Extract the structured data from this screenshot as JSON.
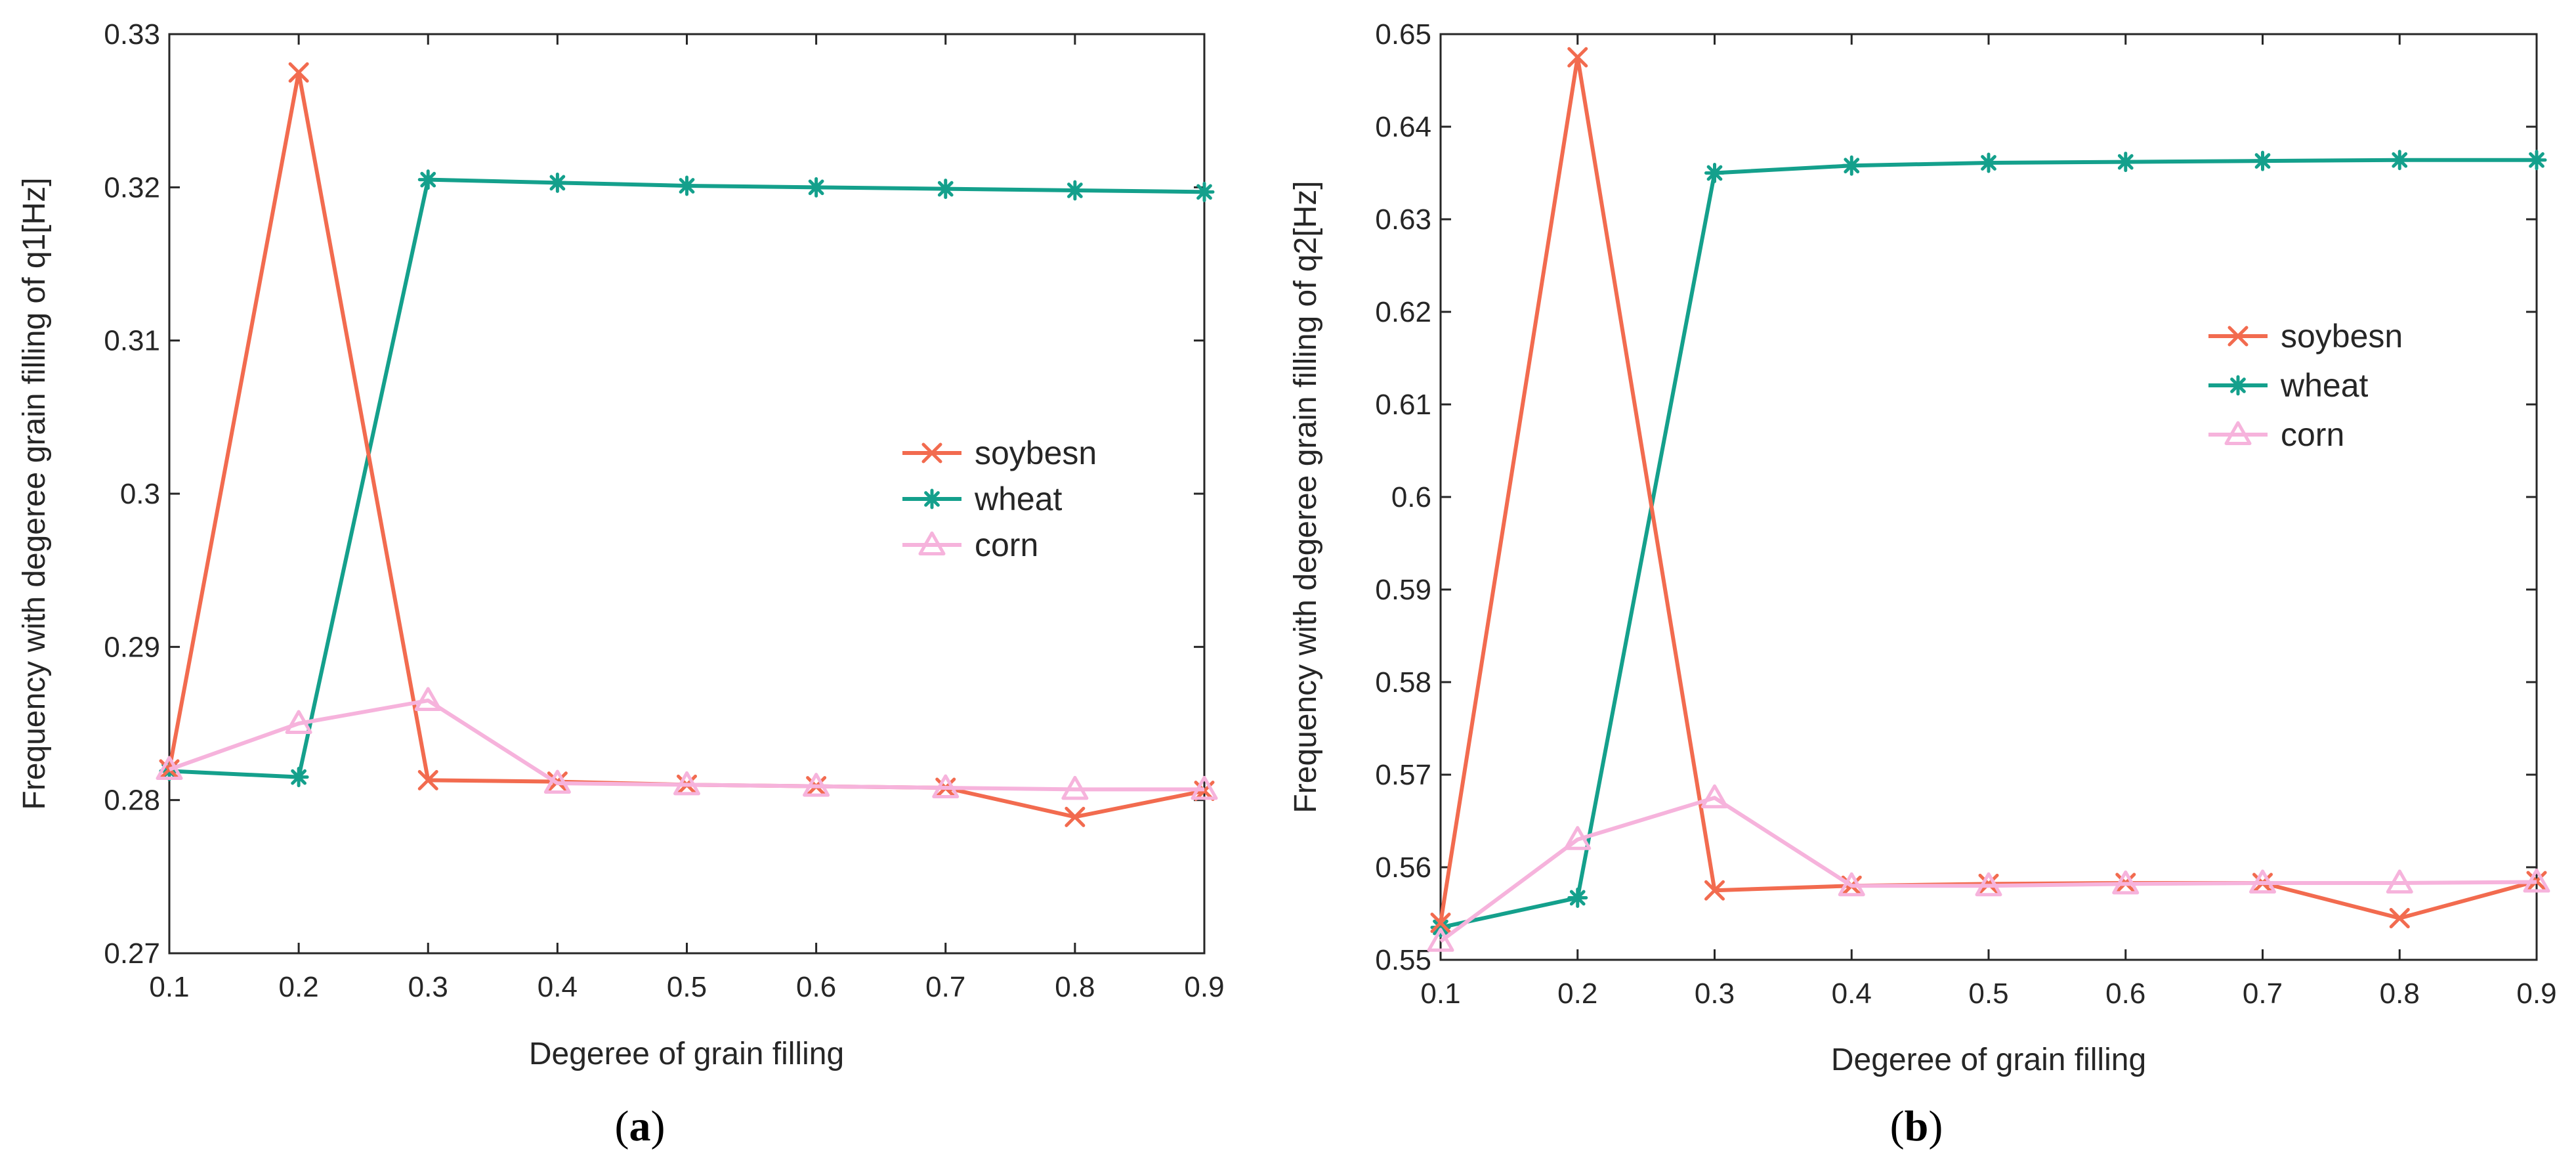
{
  "colors": {
    "soybesn": "#f26b4f",
    "wheat": "#14a08c",
    "corn": "#f6b3dc",
    "axis": "#262626"
  },
  "chart_data": [
    {
      "type": "line",
      "panel_label": "(a)",
      "caption_letter": "a",
      "xlabel": "Degeree of grain filling",
      "ylabel": "Frequency with degeree grain filling of q1[Hz]",
      "x": [
        0.1,
        0.2,
        0.3,
        0.4,
        0.5,
        0.6,
        0.7,
        0.8,
        0.9
      ],
      "xlim": [
        0.1,
        0.9
      ],
      "ylim": [
        0.27,
        0.33
      ],
      "xticks": [
        "0.1",
        "0.2",
        "0.3",
        "0.4",
        "0.5",
        "0.6",
        "0.7",
        "0.8",
        "0.9"
      ],
      "yticks": [
        "0.27",
        "0.28",
        "0.29",
        "0.3",
        "0.31",
        "0.32",
        "0.33"
      ],
      "grid": false,
      "legend_position": "right-middle",
      "series": [
        {
          "name": "soybesn",
          "marker": "x",
          "values": [
            0.282,
            0.3275,
            0.2813,
            0.2812,
            0.281,
            0.2809,
            0.2808,
            0.2789,
            0.2806
          ]
        },
        {
          "name": "wheat",
          "marker": "asterisk",
          "values": [
            0.2819,
            0.2815,
            0.3205,
            0.3203,
            0.3201,
            0.32,
            0.3199,
            0.3198,
            0.3197
          ]
        },
        {
          "name": "corn",
          "marker": "triangle",
          "values": [
            0.282,
            0.285,
            0.2865,
            0.2811,
            0.281,
            0.2809,
            0.2808,
            0.2807,
            0.2807
          ]
        }
      ]
    },
    {
      "type": "line",
      "panel_label": "(b)",
      "caption_letter": "b",
      "xlabel": "Degeree of grain filling",
      "ylabel": "Frequency with degeree grain filling of q2[Hz]",
      "x": [
        0.1,
        0.2,
        0.3,
        0.4,
        0.5,
        0.6,
        0.7,
        0.8,
        0.9
      ],
      "xlim": [
        0.1,
        0.9
      ],
      "ylim": [
        0.55,
        0.65
      ],
      "xticks": [
        "0.1",
        "0.2",
        "0.3",
        "0.4",
        "0.5",
        "0.6",
        "0.7",
        "0.8",
        "0.9"
      ],
      "yticks": [
        "0.55",
        "0.56",
        "0.57",
        "0.58",
        "0.59",
        "0.6",
        "0.61",
        "0.62",
        "0.63",
        "0.64",
        "0.65"
      ],
      "grid": false,
      "legend_position": "right-upper",
      "series": [
        {
          "name": "soybesn",
          "marker": "x",
          "values": [
            0.554,
            0.6475,
            0.5575,
            0.558,
            0.5582,
            0.5583,
            0.5583,
            0.5545,
            0.5585
          ]
        },
        {
          "name": "wheat",
          "marker": "asterisk",
          "values": [
            0.5535,
            0.5567,
            0.635,
            0.6358,
            0.6361,
            0.6362,
            0.6363,
            0.6364,
            0.6364
          ]
        },
        {
          "name": "corn",
          "marker": "triangle",
          "values": [
            0.552,
            0.563,
            0.5675,
            0.558,
            0.558,
            0.5582,
            0.5583,
            0.5583,
            0.5584
          ]
        }
      ]
    }
  ]
}
